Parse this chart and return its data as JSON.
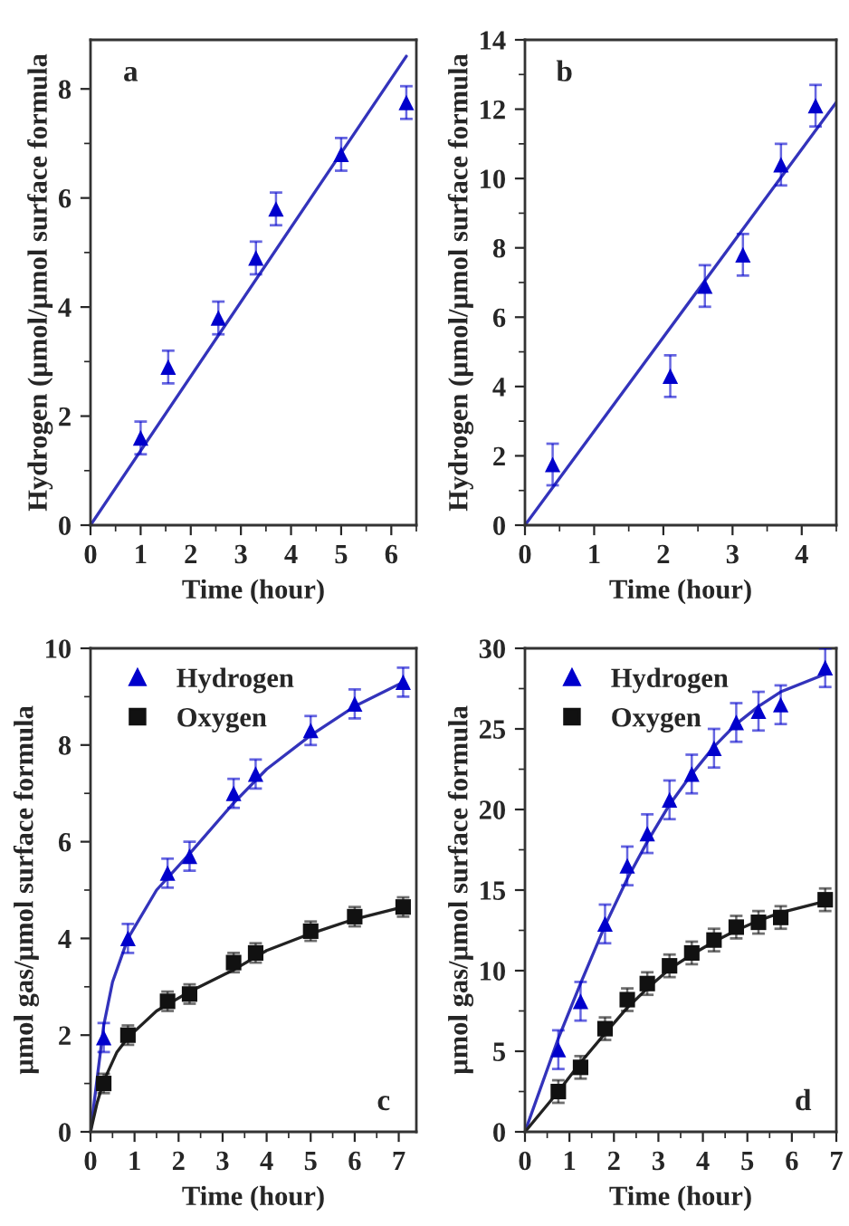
{
  "chart_data": [
    {
      "type": "scatter",
      "xlabel": "Time (hour)",
      "ylabel": "Hydrogen (µmol/µmol surface formula",
      "annotations": [
        "a"
      ],
      "xlim": [
        0,
        6.5
      ],
      "ylim": [
        0,
        8.9
      ],
      "xticks": [
        0,
        1,
        2,
        3,
        4,
        5,
        6
      ],
      "yticks": [
        0,
        2,
        4,
        6,
        8
      ],
      "grid": false,
      "legend": false,
      "series": [
        {
          "marker": "triangle",
          "color": "#0000cc",
          "x": [
            1,
            1.55,
            2.55,
            3.3,
            3.7,
            5,
            6.3
          ],
          "values": [
            1.6,
            2.9,
            3.8,
            4.9,
            5.8,
            6.8,
            7.75
          ],
          "errors": [
            0.3,
            0.3,
            0.3,
            0.3,
            0.3,
            0.3,
            0.3
          ]
        },
        {
          "type": "line",
          "marker": "none",
          "color": "#3333bb",
          "x": [
            0,
            6.3
          ],
          "values": [
            0,
            8.6
          ]
        }
      ]
    },
    {
      "type": "scatter",
      "xlabel": "Time (hour)",
      "ylabel": "Hydrogen (µmol/µmol surface formula",
      "annotations": [
        "b"
      ],
      "xlim": [
        0,
        4.5
      ],
      "ylim": [
        0,
        14
      ],
      "xticks": [
        0,
        1,
        2,
        3,
        4
      ],
      "yticks": [
        0,
        2,
        4,
        6,
        8,
        10,
        12,
        14
      ],
      "grid": false,
      "legend": false,
      "series": [
        {
          "marker": "triangle",
          "color": "#0000cc",
          "x": [
            0.4,
            2.1,
            2.6,
            3.15,
            3.7,
            4.2
          ],
          "values": [
            1.75,
            4.3,
            6.9,
            7.8,
            10.4,
            12.1
          ],
          "errors": [
            0.6,
            0.6,
            0.6,
            0.6,
            0.6,
            0.6
          ]
        },
        {
          "type": "line",
          "marker": "none",
          "color": "#3333bb",
          "x": [
            0,
            4.5
          ],
          "values": [
            0,
            12.2
          ]
        }
      ]
    },
    {
      "type": "scatter",
      "xlabel": "Time (hour)",
      "ylabel": "µmol gas/µmol surface formula",
      "annotations": [
        "c"
      ],
      "xlim": [
        0,
        7.4
      ],
      "ylim": [
        0,
        10
      ],
      "xticks": [
        0,
        1,
        2,
        3,
        4,
        5,
        6,
        7
      ],
      "yticks": [
        0,
        2,
        4,
        6,
        8,
        10
      ],
      "grid": false,
      "legend": "top left",
      "series": [
        {
          "name": "Hydrogen",
          "marker": "triangle",
          "color": "#0000cc",
          "x": [
            0.3,
            0.85,
            1.75,
            2.25,
            3.25,
            3.75,
            5,
            6,
            7.1
          ],
          "values": [
            1.95,
            4.0,
            5.35,
            5.7,
            7.0,
            7.4,
            8.3,
            8.85,
            9.3
          ],
          "errors": [
            0.3,
            0.3,
            0.3,
            0.3,
            0.3,
            0.3,
            0.3,
            0.3,
            0.3
          ]
        },
        {
          "name": "Oxygen",
          "marker": "square",
          "color": "#111111",
          "x": [
            0.3,
            0.85,
            1.75,
            2.25,
            3.25,
            3.75,
            5,
            6,
            7.1
          ],
          "values": [
            1.0,
            2.0,
            2.7,
            2.85,
            3.5,
            3.7,
            4.15,
            4.45,
            4.65
          ],
          "errors": [
            0.2,
            0.2,
            0.2,
            0.2,
            0.2,
            0.2,
            0.2,
            0.2,
            0.2
          ]
        },
        {
          "type": "line",
          "marker": "none",
          "color": "#3333bb",
          "x": [
            0,
            0.3,
            0.5,
            0.85,
            1.5,
            2.25,
            3.25,
            4,
            5,
            6,
            7.1
          ],
          "values": [
            0,
            2.2,
            3.1,
            4.0,
            5.0,
            5.75,
            6.8,
            7.5,
            8.2,
            8.8,
            9.3
          ]
        },
        {
          "type": "line",
          "marker": "none",
          "color": "#222222",
          "x": [
            0,
            0.15,
            0.3,
            0.6,
            0.85,
            1.5,
            2.25,
            3.25,
            4,
            5,
            6,
            7.1
          ],
          "values": [
            0,
            0.6,
            1.05,
            1.65,
            1.95,
            2.5,
            2.9,
            3.35,
            3.75,
            4.1,
            4.4,
            4.65
          ]
        }
      ]
    },
    {
      "type": "scatter",
      "xlabel": "Time (hour)",
      "ylabel": "µmol gas/µmol surface formula",
      "annotations": [
        "d"
      ],
      "xlim": [
        0,
        7
      ],
      "ylim": [
        0,
        30
      ],
      "xticks": [
        0,
        1,
        2,
        3,
        4,
        5,
        6,
        7
      ],
      "yticks": [
        0,
        5,
        10,
        15,
        20,
        25,
        30
      ],
      "grid": false,
      "legend": "top left",
      "series": [
        {
          "name": "Hydrogen",
          "marker": "triangle",
          "color": "#0000cc",
          "x": [
            0.75,
            1.25,
            1.8,
            2.3,
            2.75,
            3.25,
            3.75,
            4.25,
            4.75,
            5.25,
            5.75,
            6.75
          ],
          "values": [
            5.1,
            8.1,
            12.9,
            16.5,
            18.5,
            20.6,
            22.2,
            23.8,
            25.4,
            26.1,
            26.5,
            28.8
          ],
          "errors": [
            1.2,
            1.2,
            1.2,
            1.2,
            1.2,
            1.2,
            1.2,
            1.2,
            1.2,
            1.2,
            1.2,
            1.2
          ]
        },
        {
          "name": "Oxygen",
          "marker": "square",
          "color": "#111111",
          "x": [
            0.75,
            1.25,
            1.8,
            2.3,
            2.75,
            3.25,
            3.75,
            4.25,
            4.75,
            5.25,
            5.75,
            6.75
          ],
          "values": [
            2.5,
            4.0,
            6.4,
            8.2,
            9.2,
            10.3,
            11.1,
            11.9,
            12.7,
            13.0,
            13.3,
            14.4
          ],
          "errors": [
            0.7,
            0.7,
            0.7,
            0.7,
            0.7,
            0.7,
            0.7,
            0.7,
            0.7,
            0.7,
            0.7,
            0.7
          ]
        },
        {
          "type": "line",
          "marker": "none",
          "color": "#3333bb",
          "x": [
            0,
            0.75,
            1.25,
            1.8,
            2.3,
            2.75,
            3.25,
            3.75,
            4.25,
            4.75,
            5.25,
            5.75,
            6.75
          ],
          "values": [
            0,
            5.8,
            9.2,
            12.8,
            15.7,
            18.0,
            20.3,
            22.2,
            23.9,
            25.3,
            26.4,
            27.3,
            28.4
          ]
        },
        {
          "type": "line",
          "marker": "none",
          "color": "#222222",
          "x": [
            0,
            0.75,
            1.25,
            1.8,
            2.3,
            2.75,
            3.25,
            3.75,
            4.25,
            4.75,
            5.25,
            5.75,
            6.75
          ],
          "values": [
            0,
            2.5,
            4.3,
            6.1,
            7.7,
            8.9,
            10.1,
            11.0,
            11.8,
            12.5,
            13.1,
            13.6,
            14.3
          ]
        }
      ]
    }
  ]
}
